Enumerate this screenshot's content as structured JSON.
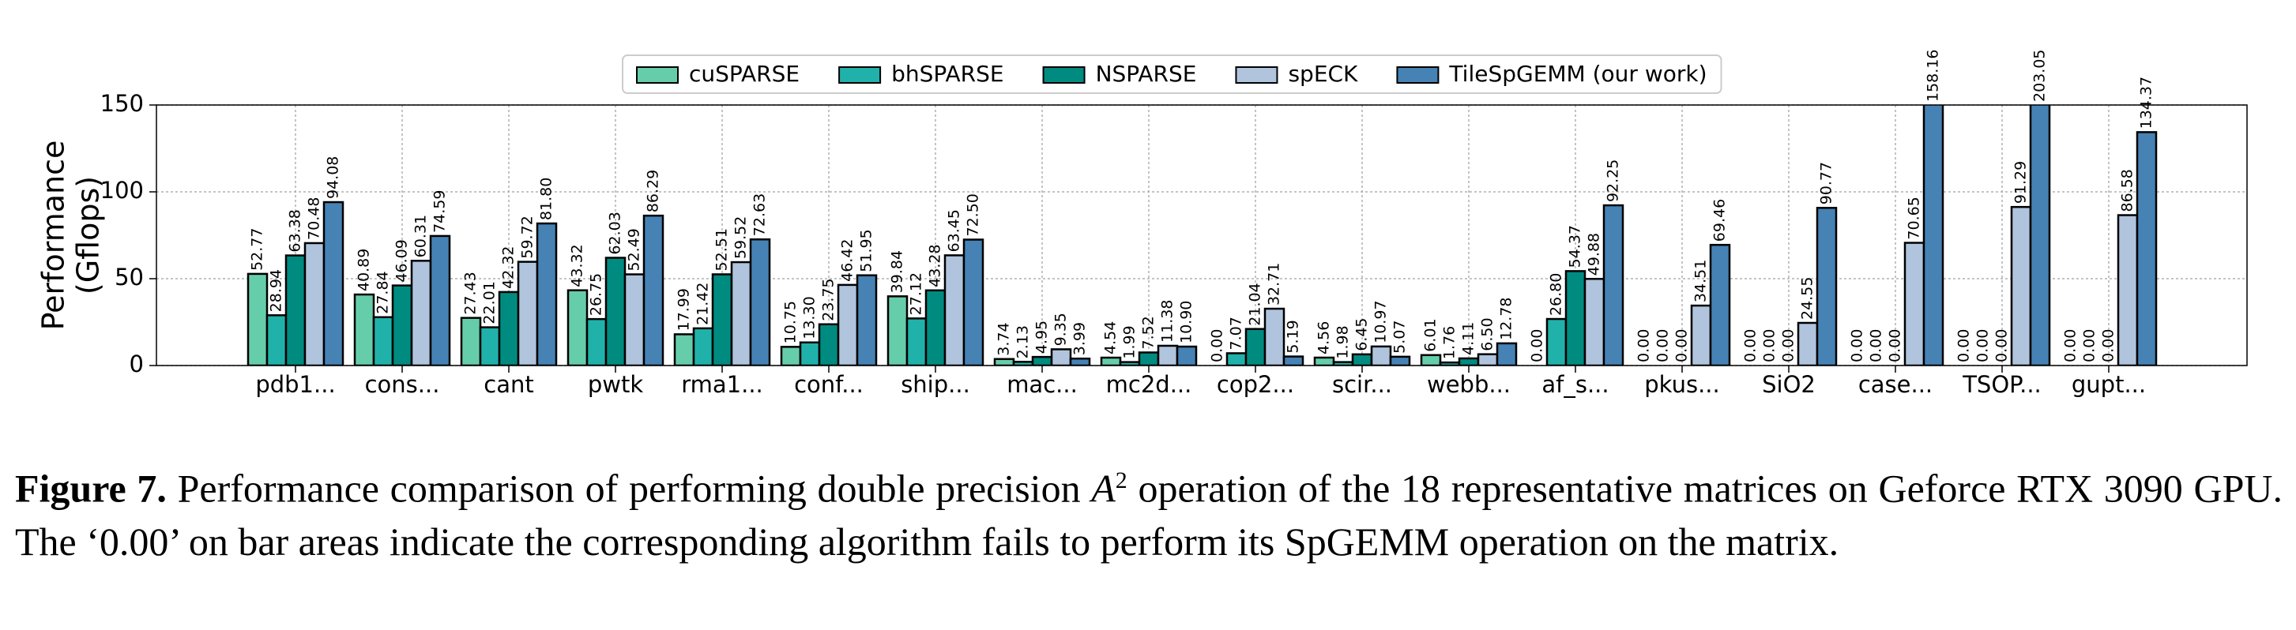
{
  "chart_data": {
    "type": "bar",
    "ylabel": [
      "Performance",
      "(Gflops)"
    ],
    "categories": [
      "pdb1...",
      "cons...",
      "cant",
      "pwtk",
      "rma1...",
      "conf...",
      "ship...",
      "mac...",
      "mc2d...",
      "cop2...",
      "scir...",
      "webb...",
      "af_s...",
      "pkus...",
      "SiO2",
      "case...",
      "TSOP...",
      "gupt..."
    ],
    "series": [
      {
        "name": "cuSPARSE",
        "color": "#66cdaa",
        "values": [
          52.77,
          40.89,
          27.43,
          43.32,
          17.99,
          10.75,
          39.84,
          3.74,
          4.54,
          0,
          4.56,
          6.01,
          0,
          0,
          0,
          0,
          0,
          0
        ],
        "value_labels": [
          "52.77",
          "40.89",
          "27.43",
          "43.32",
          "17.99",
          "10.75",
          "39.84",
          "3.74",
          "4.54",
          "0.00",
          "4.56",
          "6.01",
          "0.00",
          "0.00",
          "0.00",
          "0.00",
          "0.00",
          "0.00"
        ]
      },
      {
        "name": "bhSPARSE",
        "color": "#20b2aa",
        "values": [
          28.94,
          27.84,
          22.01,
          26.75,
          21.42,
          13.3,
          27.12,
          2.13,
          1.99,
          7.07,
          1.98,
          1.76,
          26.8,
          0,
          0,
          0,
          0,
          0
        ],
        "value_labels": [
          "28.94",
          "27.84",
          "22.01",
          "26.75",
          "21.42",
          "13.30",
          "27.12",
          "2.13",
          "1.99",
          "7.07",
          "1.98",
          "1.76",
          "26.80",
          "0.00",
          "0.00",
          "0.00",
          "0.00",
          "0.00"
        ]
      },
      {
        "name": "NSPARSE",
        "color": "#008b80",
        "values": [
          63.38,
          46.09,
          42.32,
          62.03,
          52.51,
          23.75,
          43.28,
          4.95,
          7.52,
          21.04,
          6.45,
          4.11,
          54.37,
          0,
          0,
          0,
          0,
          0
        ],
        "value_labels": [
          "63.38",
          "46.09",
          "42.32",
          "62.03",
          "52.51",
          "23.75",
          "43.28",
          "4.95",
          "7.52",
          "21.04",
          "6.45",
          "4.11",
          "54.37",
          "0.00",
          "0.00",
          "0.00",
          "0.00",
          "0.00"
        ]
      },
      {
        "name": "spECK",
        "color": "#b0c4de",
        "values": [
          70.48,
          60.31,
          59.72,
          52.49,
          59.52,
          46.42,
          63.45,
          9.35,
          11.38,
          32.71,
          10.97,
          6.5,
          49.88,
          34.51,
          24.55,
          70.65,
          91.29,
          86.58
        ],
        "value_labels": [
          "70.48",
          "60.31",
          "59.72",
          "52.49",
          "59.52",
          "46.42",
          "63.45",
          "9.35",
          "11.38",
          "32.71",
          "10.97",
          "6.50",
          "49.88",
          "34.51",
          "24.55",
          "70.65",
          "91.29",
          "86.58"
        ]
      },
      {
        "name": "TileSpGEMM (our work)",
        "color": "#4682b4",
        "values": [
          94.08,
          74.59,
          81.8,
          86.29,
          72.63,
          51.95,
          72.5,
          3.99,
          10.9,
          5.19,
          5.07,
          12.78,
          92.25,
          69.46,
          90.77,
          158.16,
          203.05,
          134.37
        ],
        "value_labels": [
          "94.08",
          "74.59",
          "81.80",
          "86.29",
          "72.63",
          "51.95",
          "72.50",
          "3.99",
          "10.90",
          "5.19",
          "5.07",
          "12.78",
          "92.25",
          "69.46",
          "90.77",
          "158.16",
          "203.05",
          "134.37"
        ]
      }
    ],
    "ylim": [
      0,
      150
    ],
    "yticks": [
      0,
      50,
      100,
      150
    ],
    "grid": true,
    "legend": "top"
  },
  "caption": {
    "label": "Figure 7.",
    "before": "Performance comparison of performing double precision",
    "math": "A",
    "sup": "2",
    "after": "operation of the 18 representative matrices on Geforce RTX 3090 GPU. The ‘0.00’ on bar areas indicate the corresponding algorithm fails to perform its SpGEMM operation on the matrix."
  }
}
